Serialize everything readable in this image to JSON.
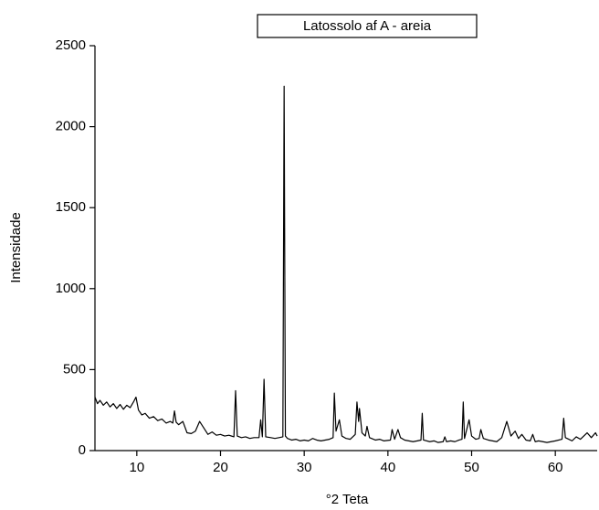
{
  "chart_data": {
    "type": "line",
    "title": "Latossolo af A - areia",
    "x_label": "°2 Teta",
    "y_label": "Intensidade",
    "x": [
      5,
      5.3,
      5.6,
      6,
      6.4,
      6.8,
      7.2,
      7.6,
      8,
      8.4,
      8.8,
      9.2,
      9.6,
      9.9,
      10.2,
      10.6,
      11,
      11.5,
      12,
      12.5,
      13,
      13.5,
      14,
      14.3,
      14.5,
      14.7,
      15,
      15.5,
      16,
      16.5,
      17,
      17.5,
      18,
      18.5,
      19,
      19.5,
      20,
      20.5,
      21,
      21.6,
      21.8,
      22,
      22.5,
      23,
      23.5,
      24,
      24.6,
      24.8,
      25,
      25.2,
      25.4,
      26,
      26.5,
      27,
      27.45,
      27.6,
      27.75,
      28,
      28.5,
      29,
      29.5,
      30,
      30.5,
      31,
      31.5,
      32,
      32.5,
      33,
      33.45,
      33.6,
      33.8,
      34.2,
      34.5,
      35,
      35.5,
      36.1,
      36.3,
      36.5,
      36.6,
      36.9,
      37.3,
      37.5,
      37.8,
      38.5,
      39,
      39.5,
      40.3,
      40.5,
      40.8,
      41.2,
      41.5,
      42,
      42.5,
      43,
      43.5,
      43.95,
      44.1,
      44.25,
      45,
      45.5,
      46,
      46.6,
      46.8,
      47,
      47.5,
      48,
      48.5,
      48.85,
      49,
      49.15,
      49.7,
      50,
      50.5,
      50.9,
      51.1,
      51.4,
      52,
      52.5,
      53,
      53.6,
      54.2,
      54.7,
      55.2,
      55.6,
      56,
      56.5,
      57,
      57.3,
      57.6,
      58,
      58.5,
      59,
      59.5,
      60,
      60.8,
      61,
      61.2,
      61.6,
      62,
      62.5,
      63,
      63.8,
      64.3,
      64.8,
      65
    ],
    "series": [
      {
        "color": "#000000",
        "values": [
          330,
          290,
          310,
          280,
          300,
          270,
          290,
          260,
          285,
          255,
          280,
          265,
          300,
          330,
          250,
          220,
          230,
          200,
          210,
          185,
          195,
          170,
          180,
          170,
          245,
          175,
          160,
          180,
          110,
          105,
          120,
          180,
          140,
          100,
          115,
          95,
          100,
          90,
          95,
          85,
          370,
          90,
          80,
          85,
          75,
          80,
          80,
          190,
          85,
          440,
          85,
          80,
          75,
          80,
          85,
          2250,
          90,
          75,
          65,
          70,
          60,
          65,
          60,
          75,
          65,
          60,
          65,
          70,
          80,
          355,
          120,
          190,
          90,
          75,
          70,
          100,
          300,
          180,
          260,
          110,
          90,
          150,
          80,
          65,
          70,
          60,
          65,
          130,
          70,
          130,
          80,
          65,
          60,
          55,
          60,
          65,
          230,
          65,
          55,
          60,
          50,
          55,
          85,
          55,
          60,
          55,
          65,
          70,
          300,
          75,
          190,
          90,
          70,
          75,
          130,
          75,
          65,
          60,
          55,
          80,
          180,
          90,
          120,
          75,
          100,
          65,
          60,
          100,
          55,
          60,
          55,
          50,
          55,
          60,
          70,
          200,
          80,
          70,
          60,
          85,
          70,
          110,
          80,
          110,
          90
        ]
      }
    ],
    "xlim": [
      5,
      65
    ],
    "xticks": [
      10,
      20,
      30,
      40,
      50,
      60
    ],
    "ylim": [
      0,
      2500
    ],
    "yticks": [
      0,
      500,
      1000,
      1500,
      2000,
      2500
    ]
  }
}
